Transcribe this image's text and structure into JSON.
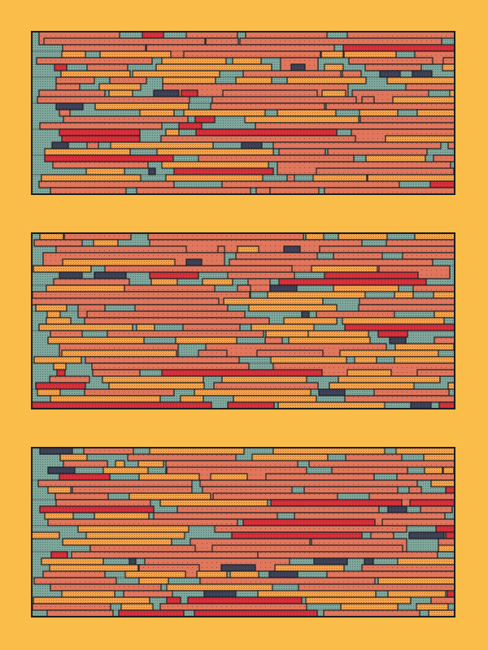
{
  "palette": {
    "background": "#FBBD4A",
    "teal": "#7FA79B",
    "salmon": "#E0765C",
    "orange": "#F6A84C",
    "red": "#D6303A",
    "navy": "#3E4257",
    "outline": "#1E1E22"
  },
  "panels": [
    {
      "name": "panel-top"
    },
    {
      "name": "panel-middle"
    },
    {
      "name": "panel-bottom"
    }
  ]
}
